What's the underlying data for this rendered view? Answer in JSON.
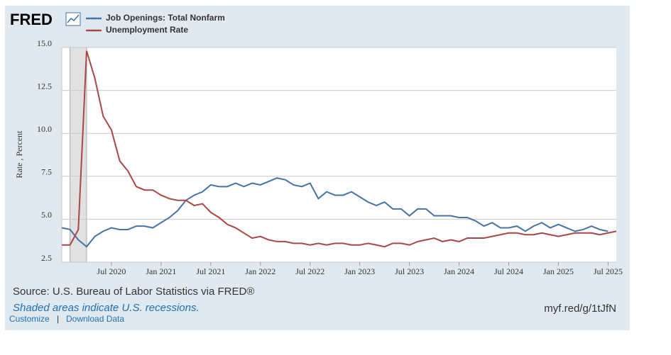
{
  "header": {
    "logo": "FRED"
  },
  "chart_data": {
    "type": "line",
    "y_label": "Rate , Percent",
    "x": [
      "2020-01",
      "2020-02",
      "2020-03",
      "2020-04",
      "2020-05",
      "2020-06",
      "2020-07",
      "2020-08",
      "2020-09",
      "2020-10",
      "2020-11",
      "2020-12",
      "2021-01",
      "2021-02",
      "2021-03",
      "2021-04",
      "2021-05",
      "2021-06",
      "2021-07",
      "2021-08",
      "2021-09",
      "2021-10",
      "2021-11",
      "2021-12",
      "2022-01",
      "2022-02",
      "2022-03",
      "2022-04",
      "2022-05",
      "2022-06",
      "2022-07",
      "2022-08",
      "2022-09",
      "2022-10",
      "2022-11",
      "2022-12",
      "2023-01",
      "2023-02",
      "2023-03",
      "2023-04",
      "2023-05",
      "2023-06",
      "2023-07",
      "2023-08",
      "2023-09",
      "2023-10",
      "2023-11",
      "2023-12",
      "2024-01",
      "2024-02",
      "2024-03",
      "2024-04",
      "2024-05",
      "2024-06",
      "2024-07",
      "2024-08",
      "2024-09",
      "2024-10",
      "2024-11",
      "2024-12",
      "2025-01",
      "2025-02",
      "2025-03",
      "2025-04",
      "2025-05",
      "2025-06",
      "2025-07",
      "2025-08"
    ],
    "series": [
      {
        "name": "Job Openings: Total Nonfarm",
        "color": "#4572a7",
        "values": [
          4.5,
          4.4,
          3.8,
          3.4,
          4.0,
          4.3,
          4.5,
          4.4,
          4.4,
          4.6,
          4.6,
          4.5,
          4.8,
          5.1,
          5.5,
          6.1,
          6.4,
          6.6,
          7.0,
          6.9,
          6.9,
          7.1,
          6.9,
          7.1,
          7.0,
          7.2,
          7.4,
          7.3,
          7.0,
          6.9,
          7.1,
          6.2,
          6.6,
          6.4,
          6.4,
          6.6,
          6.3,
          6.0,
          5.8,
          6.0,
          5.6,
          5.6,
          5.2,
          5.6,
          5.6,
          5.2,
          5.2,
          5.2,
          5.1,
          5.1,
          4.9,
          4.6,
          4.8,
          4.5,
          4.5,
          4.6,
          4.3,
          4.6,
          4.8,
          4.5,
          4.7,
          4.5,
          4.3,
          4.4,
          4.6,
          4.4,
          4.3,
          null
        ]
      },
      {
        "name": "Unemployment Rate",
        "color": "#aa4643",
        "values": [
          3.5,
          3.5,
          4.4,
          14.8,
          13.2,
          11.0,
          10.2,
          8.4,
          7.8,
          6.9,
          6.7,
          6.7,
          6.4,
          6.2,
          6.1,
          6.1,
          5.8,
          5.9,
          5.4,
          5.1,
          4.7,
          4.5,
          4.2,
          3.9,
          4.0,
          3.8,
          3.7,
          3.7,
          3.6,
          3.6,
          3.5,
          3.6,
          3.5,
          3.6,
          3.6,
          3.5,
          3.5,
          3.6,
          3.5,
          3.4,
          3.6,
          3.6,
          3.5,
          3.7,
          3.8,
          3.9,
          3.7,
          3.8,
          3.7,
          3.9,
          3.9,
          3.9,
          4.0,
          4.1,
          4.2,
          4.2,
          4.1,
          4.1,
          4.2,
          4.1,
          4.0,
          4.1,
          4.2,
          4.2,
          4.2,
          4.1,
          4.2,
          4.3
        ]
      }
    ],
    "recessions": [
      {
        "start": "2020-02",
        "end": "2020-04"
      }
    ],
    "xlim": [
      "2020-01",
      "2025-08"
    ],
    "xticks": [
      {
        "value": "2020-07",
        "label": "Jul 2020"
      },
      {
        "value": "2021-01",
        "label": "Jan 2021"
      },
      {
        "value": "2021-07",
        "label": "Jul 2021"
      },
      {
        "value": "2022-01",
        "label": "Jan 2022"
      },
      {
        "value": "2022-07",
        "label": "Jul 2022"
      },
      {
        "value": "2023-01",
        "label": "Jan 2023"
      },
      {
        "value": "2023-07",
        "label": "Jul 2023"
      },
      {
        "value": "2024-01",
        "label": "Jan 2024"
      },
      {
        "value": "2024-07",
        "label": "Jul 2024"
      },
      {
        "value": "2025-01",
        "label": "Jan 2025"
      },
      {
        "value": "2025-07",
        "label": "Jul 2025"
      }
    ],
    "ylim": [
      2.5,
      15
    ],
    "yticks": [
      2.5,
      {
        "value": 5,
        "label": "5.0"
      },
      7.5,
      {
        "value": 10,
        "label": "10.0"
      },
      12.5,
      {
        "value": 15,
        "label": "15.0"
      }
    ],
    "grid": true
  },
  "footer": {
    "source": "Source: U.S. Bureau of Labor Statistics via FRED®",
    "note": "Shaded areas indicate U.S. recessions.",
    "short_url": "myf.red/g/1tJfN",
    "links": [
      "Customize",
      "Download Data"
    ],
    "separator": "|"
  }
}
